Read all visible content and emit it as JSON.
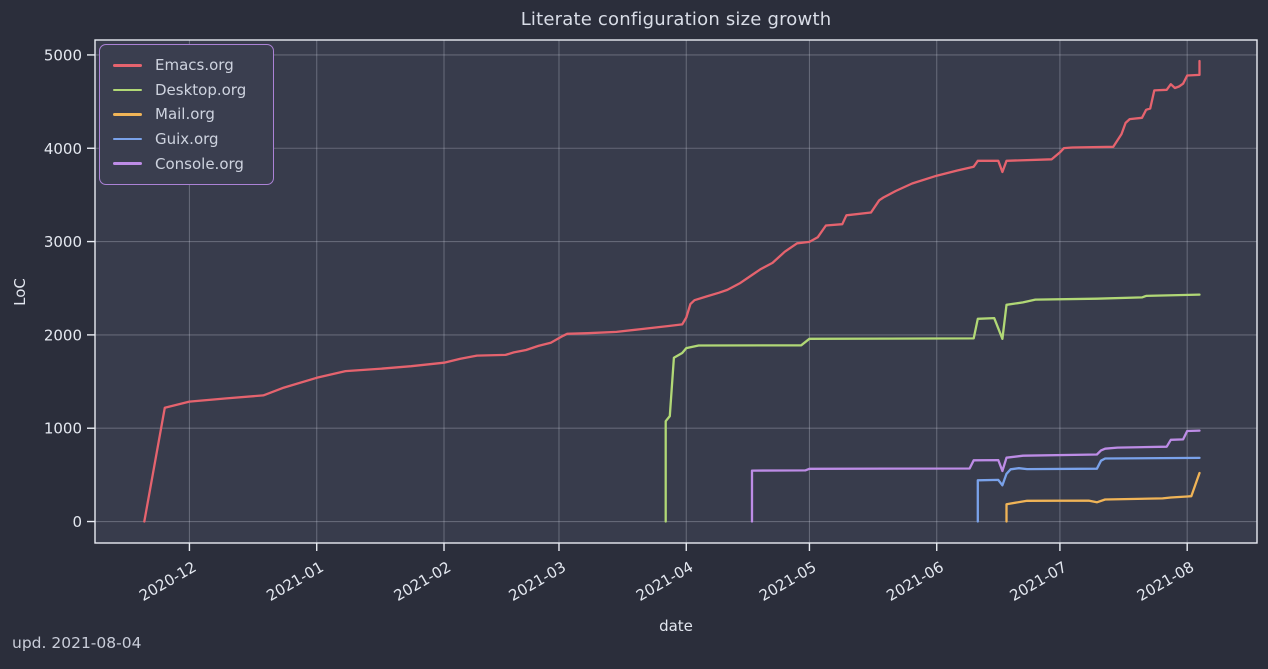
{
  "window": {
    "footer_note": "upd. 2021-08-04"
  },
  "chart_data": {
    "type": "line",
    "title": "Literate configuration size growth",
    "xlabel": "date",
    "ylabel": "LoC",
    "grid": true,
    "legend_position": "upper left",
    "x_axis": {
      "min": "2020-11-08",
      "max": "2021-08-18",
      "ticks": [
        {
          "date": "2020-12-01",
          "label": "2020-12"
        },
        {
          "date": "2021-01-01",
          "label": "2021-01"
        },
        {
          "date": "2021-02-01",
          "label": "2021-02"
        },
        {
          "date": "2021-03-01",
          "label": "2021-03"
        },
        {
          "date": "2021-04-01",
          "label": "2021-04"
        },
        {
          "date": "2021-05-01",
          "label": "2021-05"
        },
        {
          "date": "2021-06-01",
          "label": "2021-06"
        },
        {
          "date": "2021-07-01",
          "label": "2021-07"
        },
        {
          "date": "2021-08-01",
          "label": "2021-08"
        }
      ]
    },
    "y_axis": {
      "range": [
        -230,
        5160
      ],
      "ticks": [
        0,
        1000,
        2000,
        3000,
        4000,
        5000
      ]
    },
    "colors": {
      "figure_bg": "#2b2e3b",
      "axes_bg": "#383c4c",
      "grid": "rgba(215,220,235,0.28)",
      "spine": "#e9ecf3",
      "tick_text": "#e4e8f0",
      "legend_border": "#ab82d6",
      "legend_bg": "#3a3e4f"
    },
    "series": [
      {
        "name": "Emacs.org",
        "color": "#e5636e",
        "points": [
          [
            "2020-11-20",
            0
          ],
          [
            "2020-11-25",
            1220
          ],
          [
            "2020-12-01",
            1285
          ],
          [
            "2020-12-10",
            1320
          ],
          [
            "2020-12-19",
            1352
          ],
          [
            "2020-12-24",
            1435
          ],
          [
            "2021-01-01",
            1540
          ],
          [
            "2021-01-08",
            1612
          ],
          [
            "2021-01-16",
            1636
          ],
          [
            "2021-01-24",
            1665
          ],
          [
            "2021-02-01",
            1702
          ],
          [
            "2021-02-05",
            1745
          ],
          [
            "2021-02-09",
            1778
          ],
          [
            "2021-02-16",
            1786
          ],
          [
            "2021-02-18",
            1812
          ],
          [
            "2021-02-21",
            1838
          ],
          [
            "2021-02-24",
            1882
          ],
          [
            "2021-02-27",
            1916
          ],
          [
            "2021-03-02",
            1990
          ],
          [
            "2021-03-03",
            2012
          ],
          [
            "2021-03-08",
            2018
          ],
          [
            "2021-03-15",
            2032
          ],
          [
            "2021-03-21",
            2062
          ],
          [
            "2021-03-28",
            2096
          ],
          [
            "2021-03-31",
            2112
          ],
          [
            "2021-04-01",
            2186
          ],
          [
            "2021-04-02",
            2330
          ],
          [
            "2021-04-03",
            2372
          ],
          [
            "2021-04-06",
            2412
          ],
          [
            "2021-04-09",
            2452
          ],
          [
            "2021-04-11",
            2482
          ],
          [
            "2021-04-14",
            2552
          ],
          [
            "2021-04-17",
            2642
          ],
          [
            "2021-04-19",
            2702
          ],
          [
            "2021-04-22",
            2772
          ],
          [
            "2021-04-25",
            2892
          ],
          [
            "2021-04-28",
            2982
          ],
          [
            "2021-05-01",
            2996
          ],
          [
            "2021-05-03",
            3046
          ],
          [
            "2021-05-05",
            3172
          ],
          [
            "2021-05-09",
            3186
          ],
          [
            "2021-05-10",
            3282
          ],
          [
            "2021-05-16",
            3312
          ],
          [
            "2021-05-18",
            3442
          ],
          [
            "2021-05-19",
            3472
          ],
          [
            "2021-05-22",
            3542
          ],
          [
            "2021-05-26",
            3622
          ],
          [
            "2021-06-01",
            3706
          ],
          [
            "2021-06-06",
            3762
          ],
          [
            "2021-06-10",
            3802
          ],
          [
            "2021-06-11",
            3866
          ],
          [
            "2021-06-16",
            3866
          ],
          [
            "2021-06-17",
            3746
          ],
          [
            "2021-06-18",
            3866
          ],
          [
            "2021-06-29",
            3882
          ],
          [
            "2021-07-01",
            3956
          ],
          [
            "2021-07-02",
            4002
          ],
          [
            "2021-07-04",
            4008
          ],
          [
            "2021-07-14",
            4016
          ],
          [
            "2021-07-16",
            4152
          ],
          [
            "2021-07-17",
            4272
          ],
          [
            "2021-07-18",
            4312
          ],
          [
            "2021-07-21",
            4326
          ],
          [
            "2021-07-22",
            4412
          ],
          [
            "2021-07-23",
            4426
          ],
          [
            "2021-07-24",
            4620
          ],
          [
            "2021-07-27",
            4626
          ],
          [
            "2021-07-28",
            4686
          ],
          [
            "2021-07-29",
            4646
          ],
          [
            "2021-07-30",
            4662
          ],
          [
            "2021-07-31",
            4692
          ],
          [
            "2021-08-01",
            4780
          ],
          [
            "2021-08-04",
            4786
          ],
          [
            "2021-08-04",
            4935
          ]
        ]
      },
      {
        "name": "Desktop.org",
        "color": "#b1d876",
        "points": [
          [
            "2021-03-27",
            0
          ],
          [
            "2021-03-27",
            1075
          ],
          [
            "2021-03-28",
            1130
          ],
          [
            "2021-03-29",
            1756
          ],
          [
            "2021-03-31",
            1806
          ],
          [
            "2021-04-01",
            1858
          ],
          [
            "2021-04-04",
            1886
          ],
          [
            "2021-04-29",
            1888
          ],
          [
            "2021-05-01",
            1958
          ],
          [
            "2021-06-10",
            1962
          ],
          [
            "2021-06-11",
            2172
          ],
          [
            "2021-06-15",
            2180
          ],
          [
            "2021-06-17",
            1958
          ],
          [
            "2021-06-18",
            2322
          ],
          [
            "2021-06-22",
            2348
          ],
          [
            "2021-06-25",
            2378
          ],
          [
            "2021-07-10",
            2388
          ],
          [
            "2021-07-21",
            2402
          ],
          [
            "2021-07-22",
            2418
          ],
          [
            "2021-08-04",
            2432
          ]
        ]
      },
      {
        "name": "Mail.org",
        "color": "#f0b457",
        "points": [
          [
            "2021-06-18",
            0
          ],
          [
            "2021-06-18",
            186
          ],
          [
            "2021-06-23",
            222
          ],
          [
            "2021-07-08",
            224
          ],
          [
            "2021-07-10",
            206
          ],
          [
            "2021-07-12",
            236
          ],
          [
            "2021-07-26",
            248
          ],
          [
            "2021-07-28",
            258
          ],
          [
            "2021-08-01",
            268
          ],
          [
            "2021-08-02",
            272
          ],
          [
            "2021-08-04",
            520
          ]
        ]
      },
      {
        "name": "Guix.org",
        "color": "#7aa2ea",
        "points": [
          [
            "2021-06-11",
            0
          ],
          [
            "2021-06-11",
            442
          ],
          [
            "2021-06-16",
            446
          ],
          [
            "2021-06-17",
            388
          ],
          [
            "2021-06-18",
            512
          ],
          [
            "2021-06-19",
            560
          ],
          [
            "2021-06-21",
            572
          ],
          [
            "2021-06-23",
            562
          ],
          [
            "2021-07-10",
            566
          ],
          [
            "2021-07-11",
            652
          ],
          [
            "2021-07-12",
            676
          ],
          [
            "2021-08-04",
            682
          ]
        ]
      },
      {
        "name": "Console.org",
        "color": "#bd8ce6",
        "points": [
          [
            "2021-04-17",
            0
          ],
          [
            "2021-04-17",
            546
          ],
          [
            "2021-04-30",
            548
          ],
          [
            "2021-05-01",
            565
          ],
          [
            "2021-06-09",
            568
          ],
          [
            "2021-06-10",
            656
          ],
          [
            "2021-06-16",
            658
          ],
          [
            "2021-06-17",
            542
          ],
          [
            "2021-06-18",
            684
          ],
          [
            "2021-06-22",
            706
          ],
          [
            "2021-07-10",
            718
          ],
          [
            "2021-07-11",
            762
          ],
          [
            "2021-07-12",
            780
          ],
          [
            "2021-07-15",
            792
          ],
          [
            "2021-07-27",
            802
          ],
          [
            "2021-07-28",
            876
          ],
          [
            "2021-07-31",
            880
          ],
          [
            "2021-08-01",
            970
          ],
          [
            "2021-08-04",
            974
          ]
        ]
      }
    ]
  }
}
